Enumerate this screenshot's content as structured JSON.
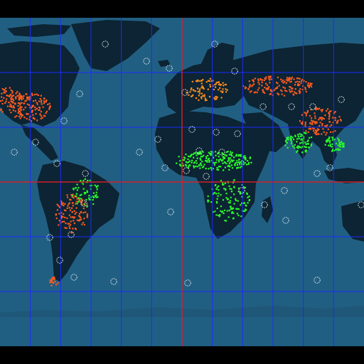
{
  "colors": {
    "frame": "#000000",
    "ocean": "#215f82",
    "land": "#0c2433",
    "grid": "#1a2cff",
    "primary_lines": "#d0202a",
    "high_density": "#ff5a1e",
    "medium_density": "#ff8c1a",
    "vegetation": "#2aff2a",
    "markers": "#dfe8ee"
  },
  "map": {
    "projection": "equirectangular",
    "lon_range": [
      -180,
      180
    ],
    "lat_range": [
      -90,
      90
    ],
    "grid_step_deg": 30,
    "primary_lines": {
      "equator_lat": 0,
      "meridian_lon": 0
    }
  }
}
